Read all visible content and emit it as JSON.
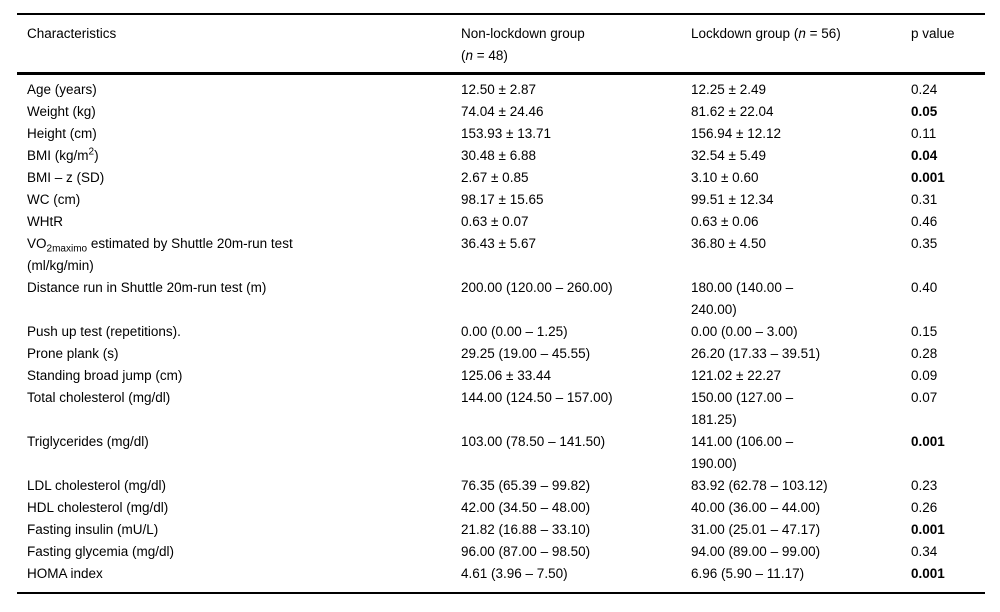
{
  "page": {
    "background": "#ffffff",
    "text_color": "#000000",
    "border_color": "#000000"
  },
  "table": {
    "header": {
      "characteristics": "Characteristics",
      "non_lockdown_line1": "Non-lockdown group",
      "non_lockdown_paren": "(",
      "non_lockdown_n": "n",
      "non_lockdown_rest": " = 48)",
      "lockdown_pre": "Lockdown group (",
      "lockdown_n": "n",
      "lockdown_rest": " = 56)",
      "p_value": "p value"
    },
    "rows": [
      {
        "label": "Age (years)",
        "non_lockdown": "12.50 ± 2.87",
        "lockdown": "12.25 ± 2.49",
        "p_value": "0.24",
        "p_bold": false
      },
      {
        "label": "Weight (kg)",
        "non_lockdown": "74.04 ± 24.46",
        "lockdown": "81.62 ± 22.04",
        "p_value": "0.05",
        "p_bold": true
      },
      {
        "label": "Height (cm)",
        "non_lockdown": "153.93 ± 13.71",
        "lockdown": "156.94 ± 12.12",
        "p_value": "0.11",
        "p_bold": false
      },
      {
        "label_parts": [
          {
            "text": "BMI (kg/m"
          },
          {
            "text": "2",
            "script": "sup"
          },
          {
            "text": ")"
          }
        ],
        "non_lockdown": "30.48 ± 6.88",
        "lockdown": "32.54 ± 5.49",
        "p_value": "0.04",
        "p_bold": true
      },
      {
        "label": "BMI – z (SD)",
        "non_lockdown": "2.67 ± 0.85",
        "lockdown": "3.10 ± 0.60",
        "p_value": "0.001",
        "p_bold": true
      },
      {
        "label": "WC (cm)",
        "non_lockdown": "98.17 ± 15.65",
        "lockdown": "99.51 ± 12.34",
        "p_value": "0.31",
        "p_bold": false
      },
      {
        "label": "WHtR",
        "non_lockdown": "0.63 ± 0.07",
        "lockdown": "0.63 ± 0.06",
        "p_value": "0.46",
        "p_bold": false
      },
      {
        "label_parts": [
          {
            "text": "VO"
          },
          {
            "text": "2maximo",
            "script": "sub"
          },
          {
            "text": " estimated by Shuttle 20m-run test\n(ml/kg/min)"
          }
        ],
        "non_lockdown": "36.43 ± 5.67",
        "lockdown": "36.80 ± 4.50",
        "p_value": "0.35",
        "p_bold": false
      },
      {
        "label": "Distance run in Shuttle 20m-run test (m)",
        "non_lockdown": "200.00 (120.00 – 260.00)",
        "lockdown": "180.00 (140.00 –\n240.00)",
        "p_value": "0.40",
        "p_bold": false
      },
      {
        "label": "Push up test (repetitions).",
        "non_lockdown": "0.00 (0.00 – 1.25)",
        "lockdown": "0.00 (0.00 – 3.00)",
        "p_value": "0.15",
        "p_bold": false
      },
      {
        "label": "Prone plank (s)",
        "non_lockdown": "29.25 (19.00 – 45.55)",
        "lockdown": "26.20 (17.33 – 39.51)",
        "p_value": "0.28",
        "p_bold": false
      },
      {
        "label": "Standing broad jump (cm)",
        "non_lockdown": "125.06 ± 33.44",
        "lockdown": "121.02 ± 22.27",
        "p_value": "0.09",
        "p_bold": false
      },
      {
        "label": "Total cholesterol (mg/dl)",
        "non_lockdown": "144.00 (124.50 – 157.00)",
        "lockdown": "150.00 (127.00 –\n181.25)",
        "p_value": "0.07",
        "p_bold": false
      },
      {
        "label": "Triglycerides (mg/dl)",
        "non_lockdown": "103.00 (78.50 – 141.50)",
        "lockdown": "141.00 (106.00 –\n190.00)",
        "p_value": "0.001",
        "p_bold": true
      },
      {
        "label": "LDL cholesterol (mg/dl)",
        "non_lockdown": "76.35 (65.39 – 99.82)",
        "lockdown": "83.92 (62.78 – 103.12)",
        "p_value": "0.23",
        "p_bold": false
      },
      {
        "label": "HDL cholesterol (mg/dl)",
        "non_lockdown": "42.00 (34.50 – 48.00)",
        "lockdown": "40.00 (36.00 – 44.00)",
        "p_value": "0.26",
        "p_bold": false
      },
      {
        "label": "Fasting insulin (mU/L)",
        "non_lockdown": "21.82 (16.88 – 33.10)",
        "lockdown": "31.00 (25.01 – 47.17)",
        "p_value": "0.001",
        "p_bold": true
      },
      {
        "label": "Fasting glycemia (mg/dl)",
        "non_lockdown": "96.00 (87.00 – 98.50)",
        "lockdown": "94.00 (89.00 – 99.00)",
        "p_value": "0.34",
        "p_bold": false
      },
      {
        "label": "HOMA index",
        "non_lockdown": "4.61 (3.96 – 7.50)",
        "lockdown": "6.96 (5.90 – 11.17)",
        "p_value": "0.001",
        "p_bold": true
      }
    ]
  }
}
